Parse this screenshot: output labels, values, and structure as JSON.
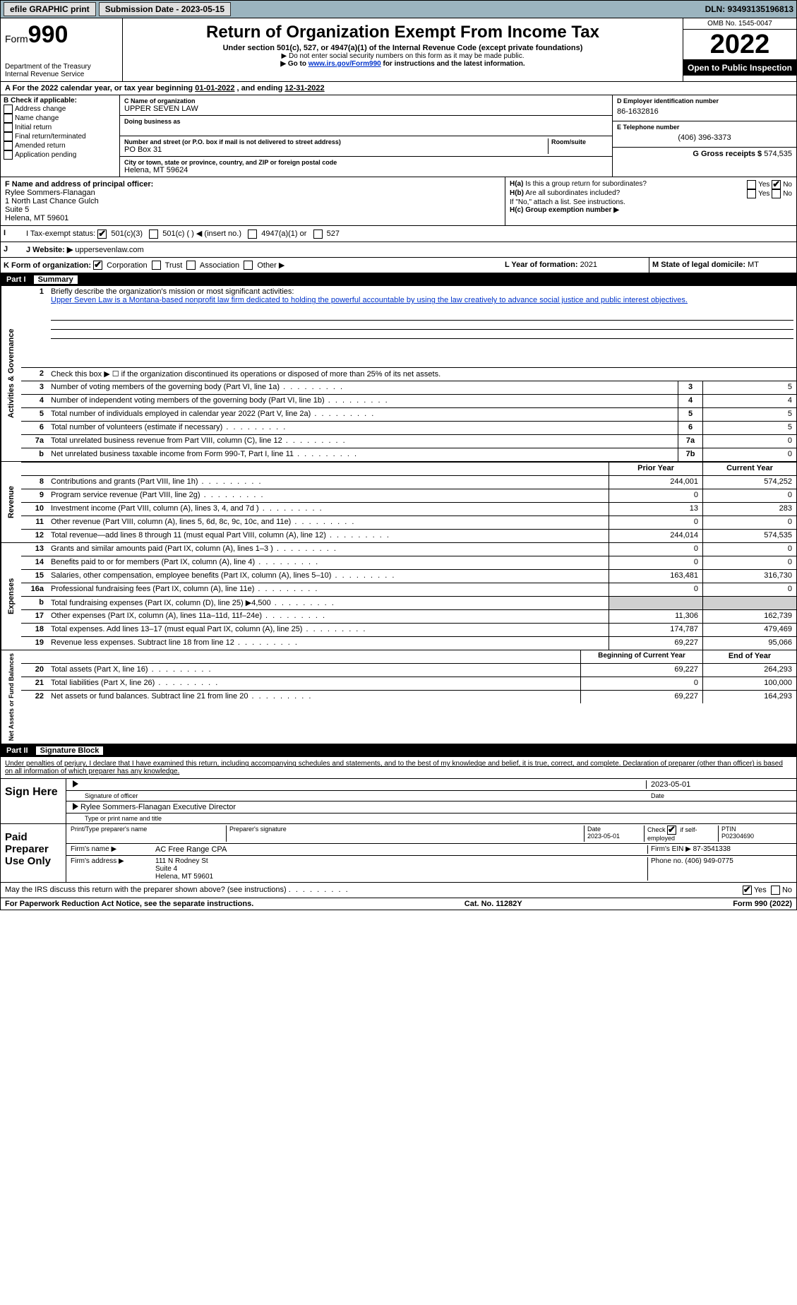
{
  "topbar": {
    "efile": "efile GRAPHIC print",
    "submission_label": "Submission Date - 2023-05-15",
    "dln": "DLN: 93493135196813"
  },
  "header": {
    "form_prefix": "Form",
    "form_number": "990",
    "dept": "Department of the Treasury",
    "irs": "Internal Revenue Service",
    "title": "Return of Organization Exempt From Income Tax",
    "subtitle": "Under section 501(c), 527, or 4947(a)(1) of the Internal Revenue Code (except private foundations)",
    "note1": "▶ Do not enter social security numbers on this form as it may be made public.",
    "note2_pre": "▶ Go to ",
    "note2_link": "www.irs.gov/Form990",
    "note2_post": " for instructions and the latest information.",
    "omb": "OMB No. 1545-0047",
    "year": "2022",
    "open": "Open to Public Inspection"
  },
  "period": {
    "text_pre": "A For the 2022 calendar year, or tax year beginning ",
    "begin": "01-01-2022",
    "text_mid": " , and ending ",
    "end": "12-31-2022"
  },
  "box_b": {
    "label": "B Check if applicable:",
    "items": [
      "Address change",
      "Name change",
      "Initial return",
      "Final return/terminated",
      "Amended return",
      "Application pending"
    ]
  },
  "box_c": {
    "name_label": "C Name of organization",
    "name": "UPPER SEVEN LAW",
    "dba_label": "Doing business as",
    "addr_label": "Number and street (or P.O. box if mail is not delivered to street address)",
    "room_label": "Room/suite",
    "addr": "PO Box 31",
    "city_label": "City or town, state or province, country, and ZIP or foreign postal code",
    "city": "Helena, MT  59624"
  },
  "box_d": {
    "label": "D Employer identification number",
    "value": "86-1632816"
  },
  "box_e": {
    "label": "E Telephone number",
    "value": "(406) 396-3373"
  },
  "box_g": {
    "label": "G Gross receipts $",
    "value": "574,535"
  },
  "box_f": {
    "label": "F Name and address of principal officer:",
    "name": "Rylee Sommers-Flanagan",
    "addr1": "1 North Last Chance Gulch",
    "addr2": "Suite 5",
    "addr3": "Helena, MT  59601"
  },
  "box_h": {
    "a_label": "H(a) Is this a group return for subordinates?",
    "b_label": "H(b) Are all subordinates included?",
    "note": "If \"No,\" attach a list. See instructions.",
    "c_label": "H(c) Group exemption number ▶",
    "yes": "Yes",
    "no": "No"
  },
  "box_i": {
    "label": "I Tax-exempt status:",
    "opt1": "501(c)(3)",
    "opt2": "501(c) (  ) ◀ (insert no.)",
    "opt3": "4947(a)(1) or",
    "opt4": "527"
  },
  "box_j": {
    "label": "J Website: ▶",
    "value": "uppersevenlaw.com"
  },
  "box_k": {
    "label": "K Form of organization:",
    "opts": [
      "Corporation",
      "Trust",
      "Association",
      "Other ▶"
    ]
  },
  "box_l": {
    "label": "L Year of formation:",
    "value": "2021"
  },
  "box_m": {
    "label": "M State of legal domicile:",
    "value": "MT"
  },
  "part1": {
    "label": "Part I",
    "title": "Summary"
  },
  "summary": {
    "line1_label": "Briefly describe the organization's mission or most significant activities:",
    "line1_text": "Upper Seven Law is a Montana-based nonprofit law firm dedicated to holding the powerful accountable by using the law creatively to advance social justice and public interest objectives.",
    "line2": "Check this box ▶ ☐ if the organization discontinued its operations or disposed of more than 25% of its net assets.",
    "rows_ag": [
      {
        "n": "3",
        "d": "Number of voting members of the governing body (Part VI, line 1a)",
        "box": "3",
        "v": "5"
      },
      {
        "n": "4",
        "d": "Number of independent voting members of the governing body (Part VI, line 1b)",
        "box": "4",
        "v": "4"
      },
      {
        "n": "5",
        "d": "Total number of individuals employed in calendar year 2022 (Part V, line 2a)",
        "box": "5",
        "v": "5"
      },
      {
        "n": "6",
        "d": "Total number of volunteers (estimate if necessary)",
        "box": "6",
        "v": "5"
      },
      {
        "n": "7a",
        "d": "Total unrelated business revenue from Part VIII, column (C), line 12",
        "box": "7a",
        "v": "0"
      },
      {
        "n": "b",
        "d": "Net unrelated business taxable income from Form 990-T, Part I, line 11",
        "box": "7b",
        "v": "0"
      }
    ],
    "prior_label": "Prior Year",
    "current_label": "Current Year",
    "rows_rev": [
      {
        "n": "8",
        "d": "Contributions and grants (Part VIII, line 1h)",
        "p": "244,001",
        "c": "574,252"
      },
      {
        "n": "9",
        "d": "Program service revenue (Part VIII, line 2g)",
        "p": "0",
        "c": "0"
      },
      {
        "n": "10",
        "d": "Investment income (Part VIII, column (A), lines 3, 4, and 7d )",
        "p": "13",
        "c": "283"
      },
      {
        "n": "11",
        "d": "Other revenue (Part VIII, column (A), lines 5, 6d, 8c, 9c, 10c, and 11e)",
        "p": "0",
        "c": "0"
      },
      {
        "n": "12",
        "d": "Total revenue—add lines 8 through 11 (must equal Part VIII, column (A), line 12)",
        "p": "244,014",
        "c": "574,535"
      }
    ],
    "rows_exp": [
      {
        "n": "13",
        "d": "Grants and similar amounts paid (Part IX, column (A), lines 1–3 )",
        "p": "0",
        "c": "0"
      },
      {
        "n": "14",
        "d": "Benefits paid to or for members (Part IX, column (A), line 4)",
        "p": "0",
        "c": "0"
      },
      {
        "n": "15",
        "d": "Salaries, other compensation, employee benefits (Part IX, column (A), lines 5–10)",
        "p": "163,481",
        "c": "316,730"
      },
      {
        "n": "16a",
        "d": "Professional fundraising fees (Part IX, column (A), line 11e)",
        "p": "0",
        "c": "0"
      },
      {
        "n": "b",
        "d": "Total fundraising expenses (Part IX, column (D), line 25) ▶4,500",
        "p": "",
        "c": "",
        "shade": true
      },
      {
        "n": "17",
        "d": "Other expenses (Part IX, column (A), lines 11a–11d, 11f–24e)",
        "p": "11,306",
        "c": "162,739"
      },
      {
        "n": "18",
        "d": "Total expenses. Add lines 13–17 (must equal Part IX, column (A), line 25)",
        "p": "174,787",
        "c": "479,469"
      },
      {
        "n": "19",
        "d": "Revenue less expenses. Subtract line 18 from line 12",
        "p": "69,227",
        "c": "95,066"
      }
    ],
    "begin_label": "Beginning of Current Year",
    "end_label": "End of Year",
    "rows_na": [
      {
        "n": "20",
        "d": "Total assets (Part X, line 16)",
        "p": "69,227",
        "c": "264,293"
      },
      {
        "n": "21",
        "d": "Total liabilities (Part X, line 26)",
        "p": "0",
        "c": "100,000"
      },
      {
        "n": "22",
        "d": "Net assets or fund balances. Subtract line 21 from line 20",
        "p": "69,227",
        "c": "164,293"
      }
    ],
    "side_ag": "Activities & Governance",
    "side_rev": "Revenue",
    "side_exp": "Expenses",
    "side_na": "Net Assets or Fund Balances"
  },
  "part2": {
    "label": "Part II",
    "title": "Signature Block",
    "penalty": "Under penalties of perjury, I declare that I have examined this return, including accompanying schedules and statements, and to the best of my knowledge and belief, it is true, correct, and complete. Declaration of preparer (other than officer) is based on all information of which preparer has any knowledge."
  },
  "sign": {
    "here": "Sign Here",
    "sig_label": "Signature of officer",
    "date_label": "Date",
    "date": "2023-05-01",
    "name": "Rylee Sommers-Flanagan  Executive Director",
    "name_label": "Type or print name and title"
  },
  "paid": {
    "label": "Paid Preparer Use Only",
    "prep_name_label": "Print/Type preparer's name",
    "prep_sig_label": "Preparer's signature",
    "date_label": "Date",
    "date": "2023-05-01",
    "check_label": "Check ☑ if self-employed",
    "ptin_label": "PTIN",
    "ptin": "P02304690",
    "firm_name_label": "Firm's name ▶",
    "firm_name": "AC Free Range CPA",
    "firm_ein_label": "Firm's EIN ▶",
    "firm_ein": "87-3541338",
    "firm_addr_label": "Firm's address ▶",
    "firm_addr": "111 N Rodney St\nSuite 4\nHelena, MT  59601",
    "phone_label": "Phone no.",
    "phone": "(406) 949-0775"
  },
  "discuss": {
    "text": "May the IRS discuss this return with the preparer shown above? (see instructions)",
    "yes": "Yes",
    "no": "No"
  },
  "footer": {
    "left": "For Paperwork Reduction Act Notice, see the separate instructions.",
    "mid": "Cat. No. 11282Y",
    "right": "Form 990 (2022)"
  },
  "colors": {
    "topbar_bg": "#9bb4bf",
    "link": "#0033cc",
    "shade": "#d0d0d0"
  }
}
